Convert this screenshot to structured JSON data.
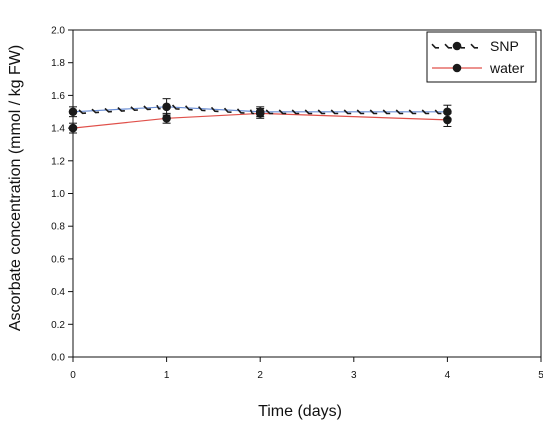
{
  "chart_data": {
    "type": "line",
    "title": "",
    "xlabel": "Time (days)",
    "ylabel": "Ascorbate concentration (mmol / kg FW)",
    "xlim": [
      0,
      5
    ],
    "ylim": [
      0.0,
      2.0
    ],
    "x_ticks": [
      "0",
      "1",
      "2",
      "3",
      "4",
      "5"
    ],
    "y_ticks": [
      "0.0",
      "0.2",
      "0.4",
      "0.6",
      "0.8",
      "1.0",
      "1.2",
      "1.4",
      "1.6",
      "1.8",
      "2.0"
    ],
    "grid": false,
    "legend_position": "top-right",
    "series": [
      {
        "name": "SNP",
        "color": "#1a1a1a",
        "line_color": "#6b8fd6",
        "line_style": "dashed-zigzag",
        "marker": "circle",
        "points": [
          {
            "x": 0,
            "y": 1.5,
            "err": 0.03
          },
          {
            "x": 1,
            "y": 1.53,
            "err": 0.05
          },
          {
            "x": 2,
            "y": 1.5,
            "err": 0.03
          },
          {
            "x": 4,
            "y": 1.5,
            "err": 0.04
          }
        ]
      },
      {
        "name": "water",
        "color": "#1a1a1a",
        "line_color": "#e0504a",
        "line_style": "solid",
        "marker": "circle",
        "points": [
          {
            "x": 0,
            "y": 1.4,
            "err": 0.03
          },
          {
            "x": 1,
            "y": 1.46,
            "err": 0.03
          },
          {
            "x": 2,
            "y": 1.49,
            "err": 0.03
          },
          {
            "x": 4,
            "y": 1.45,
            "err": 0.04
          }
        ]
      }
    ]
  }
}
